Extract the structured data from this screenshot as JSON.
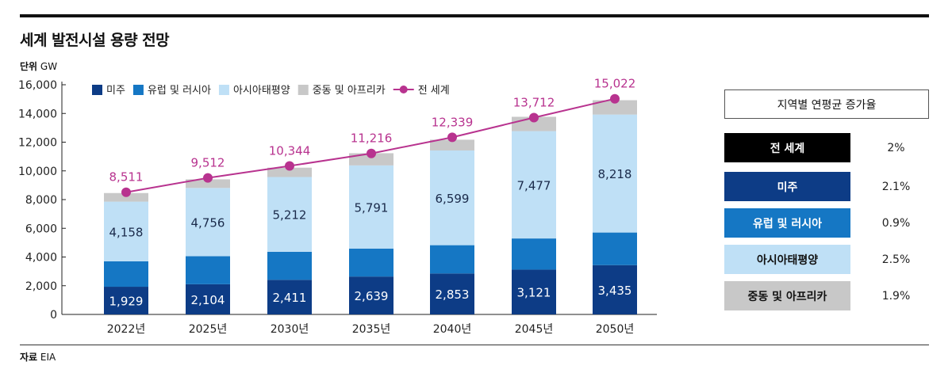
{
  "title": "세계 발전시설 용량 전망",
  "unit_label": "단위",
  "unit_value": "GW",
  "source_label": "자료",
  "source_value": "EIA",
  "chart_data": {
    "type": "bar",
    "stacked": true,
    "categories": [
      "2022년",
      "2025년",
      "2030년",
      "2035년",
      "2040년",
      "2045년",
      "2050년"
    ],
    "ylim": [
      0,
      16000
    ],
    "yticks": [
      "0",
      "2,000",
      "4,000",
      "6,000",
      "8,000",
      "10,000",
      "12,000",
      "14,000",
      "16,000"
    ],
    "ytick_values": [
      0,
      2000,
      4000,
      6000,
      8000,
      10000,
      12000,
      14000,
      16000
    ],
    "series": [
      {
        "name": "미주",
        "color": "#0d3c86",
        "values": [
          1929,
          2104,
          2411,
          2639,
          2853,
          3121,
          3435
        ],
        "labels": [
          "1,929",
          "2,104",
          "2,411",
          "2,639",
          "2,853",
          "3,121",
          "3,435"
        ]
      },
      {
        "name": "유럽 및 러시아",
        "color": "#1577c4",
        "values": [
          1770,
          1950,
          1950,
          1950,
          1970,
          2170,
          2270
        ]
      },
      {
        "name": "아시아태평양",
        "color": "#bfe0f6",
        "values": [
          4158,
          4756,
          5212,
          5791,
          6599,
          7477,
          8218
        ],
        "labels": [
          "4,158",
          "4,756",
          "5,212",
          "5,791",
          "6,599",
          "7,477",
          "8,218"
        ]
      },
      {
        "name": "중동 및 아프리카",
        "color": "#c8c8c8",
        "values": [
          600,
          600,
          650,
          850,
          750,
          1000,
          1000
        ]
      }
    ],
    "line": {
      "name": "전 세계",
      "color": "#b8338f",
      "values": [
        8511,
        9512,
        10344,
        11216,
        12339,
        13712,
        15022
      ],
      "labels": [
        "8,511",
        "9,512",
        "10,344",
        "11,216",
        "12,339",
        "13,712",
        "15,022"
      ]
    }
  },
  "side_panel": {
    "title": "지역별 연평균 증가율",
    "rows": [
      {
        "label": "전 세계",
        "value": "2%",
        "bg": "#000000",
        "fg": "#ffffff"
      },
      {
        "label": "미주",
        "value": "2.1%",
        "bg": "#0d3c86",
        "fg": "#ffffff"
      },
      {
        "label": "유럽 및 러시아",
        "value": "0.9%",
        "bg": "#1577c4",
        "fg": "#ffffff"
      },
      {
        "label": "아시아태평양",
        "value": "2.5%",
        "bg": "#bfe0f6",
        "fg": "#111111"
      },
      {
        "label": "중동 및 아프리카",
        "value": "1.9%",
        "bg": "#c8c8c8",
        "fg": "#111111"
      }
    ]
  }
}
